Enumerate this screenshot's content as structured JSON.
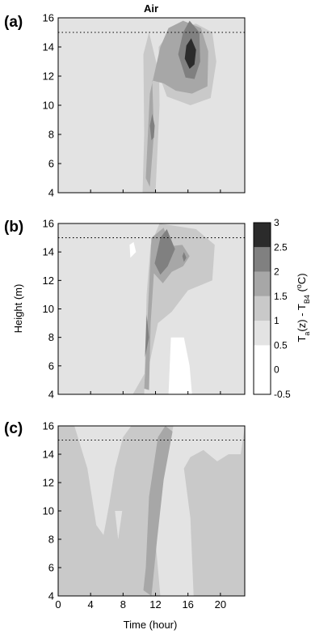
{
  "chart_data": [
    {
      "type": "heatmap",
      "panel_label": "(a)",
      "title": "Air",
      "xlabel": "",
      "ylabel": "",
      "xlim": [
        0,
        23
      ],
      "ylim": [
        4,
        16
      ],
      "xticks": [
        0,
        4,
        8,
        12,
        16,
        20
      ],
      "yticks": [
        4,
        6,
        8,
        10,
        12,
        14,
        16
      ],
      "show_xtick_labels": false,
      "reference_line_y": 15,
      "background_level": 0.75,
      "regions": [
        {
          "level": 0.25,
          "points": [
            [
              8,
              16
            ],
            [
              5,
              15.5
            ],
            [
              3,
              14
            ],
            [
              2.8,
              10
            ],
            [
              3,
              4
            ],
            [
              9,
              4
            ],
            [
              8.6,
              9
            ],
            [
              8.3,
              13
            ],
            [
              8.5,
              15
            ]
          ]
        },
        {
          "level": 0.75,
          "points": [
            [
              1.6,
              15.2
            ],
            [
              1.5,
              11
            ],
            [
              2.1,
              4
            ],
            [
              9.3,
              4
            ],
            [
              10,
              8
            ],
            [
              10.6,
              11
            ],
            [
              10.6,
              13
            ],
            [
              9.5,
              16
            ],
            [
              2,
              16
            ]
          ]
        },
        {
          "level": 1.25,
          "points": [
            [
              10.4,
              4
            ],
            [
              12,
              4
            ],
            [
              12.5,
              10
            ],
            [
              12.4,
              14
            ],
            [
              14,
              15.2
            ],
            [
              17,
              15.6
            ],
            [
              19,
              15
            ],
            [
              19.5,
              13
            ],
            [
              18.8,
              10.5
            ],
            [
              16.3,
              10
            ],
            [
              13.4,
              10.6
            ],
            [
              12.5,
              12
            ],
            [
              11.2,
              15
            ],
            [
              10.5,
              13.5
            ],
            [
              10.6,
              8
            ]
          ]
        },
        {
          "level": 1.75,
          "points": [
            [
              10.8,
              5
            ],
            [
              11.3,
              4.4
            ],
            [
              11.8,
              8
            ],
            [
              11.6,
              11.7
            ],
            [
              13,
              11.5
            ],
            [
              14.5,
              11
            ],
            [
              16.5,
              10.8
            ],
            [
              18.4,
              11.3
            ],
            [
              18.5,
              13.7
            ],
            [
              17.6,
              15.3
            ],
            [
              15.4,
              15.8
            ],
            [
              13.6,
              15.3
            ],
            [
              12.6,
              14
            ],
            [
              11.3,
              10.8
            ]
          ]
        },
        {
          "level": 2.25,
          "points": [
            [
              14.8,
              13.5
            ],
            [
              15.4,
              15
            ],
            [
              16.2,
              15.8
            ],
            [
              17.4,
              15
            ],
            [
              17.5,
              13
            ],
            [
              16.8,
              11.8
            ],
            [
              15.7,
              11.9
            ]
          ]
        },
        {
          "level": 2.25,
          "points": [
            [
              11.5,
              7.6
            ],
            [
              11.3,
              8.6
            ],
            [
              11.6,
              9.4
            ],
            [
              11.9,
              8.6
            ],
            [
              11.8,
              7.8
            ]
          ]
        },
        {
          "level": 2.75,
          "points": [
            [
              15.6,
              13.2
            ],
            [
              15.8,
              14.1
            ],
            [
              16.4,
              14.6
            ],
            [
              17,
              13.8
            ],
            [
              16.8,
              12.8
            ],
            [
              16.2,
              12.5
            ]
          ]
        }
      ]
    },
    {
      "type": "heatmap",
      "panel_label": "(b)",
      "title": "",
      "xlabel": "",
      "ylabel": "Height (m)",
      "xlim": [
        0,
        23
      ],
      "ylim": [
        4,
        16
      ],
      "xticks": [
        0,
        4,
        8,
        12,
        16,
        20
      ],
      "yticks": [
        4,
        6,
        8,
        10,
        12,
        14,
        16
      ],
      "show_xtick_labels": false,
      "reference_line_y": 15,
      "background_level": 0.75,
      "regions": [
        {
          "level": 0.25,
          "points": [
            [
              8.9,
              13.6
            ],
            [
              8.8,
              14.5
            ],
            [
              9.3,
              14.7
            ],
            [
              9.6,
              14
            ]
          ]
        },
        {
          "level": 0.25,
          "points": [
            [
              13.6,
              4
            ],
            [
              16.5,
              4
            ],
            [
              16.2,
              6
            ],
            [
              15.5,
              8
            ],
            [
              13.9,
              8
            ]
          ]
        },
        {
          "level": 1.25,
          "points": [
            [
              9.2,
              4
            ],
            [
              10.6,
              4
            ],
            [
              10.9,
              11
            ],
            [
              11.4,
              14.5
            ],
            [
              12.5,
              16
            ],
            [
              17,
              15.6
            ],
            [
              19.3,
              14.5
            ],
            [
              19,
              12
            ],
            [
              16,
              11.3
            ],
            [
              14,
              9.8
            ],
            [
              12.3,
              9
            ],
            [
              11.2,
              6
            ]
          ]
        },
        {
          "level": 1.75,
          "points": [
            [
              10.6,
              4.4
            ],
            [
              11.2,
              4.3
            ],
            [
              11.4,
              9
            ],
            [
              11.8,
              12.5
            ],
            [
              12.9,
              11.8
            ],
            [
              14,
              12.6
            ],
            [
              15.4,
              13
            ],
            [
              16.2,
              13.7
            ],
            [
              15.3,
              14.5
            ],
            [
              13.8,
              14.4
            ],
            [
              13,
              15.7
            ],
            [
              11.5,
              15
            ]
          ]
        },
        {
          "level": 2.25,
          "points": [
            [
              11.9,
              13.2
            ],
            [
              12.6,
              15
            ],
            [
              13.4,
              15.6
            ],
            [
              14.4,
              14.2
            ],
            [
              13.5,
              13
            ],
            [
              12.6,
              12.4
            ]
          ]
        },
        {
          "level": 2.25,
          "points": [
            [
              15.3,
              13.7
            ],
            [
              15.5,
              14
            ],
            [
              15.8,
              13.6
            ],
            [
              15.5,
              13.3
            ]
          ]
        },
        {
          "level": 2.25,
          "points": [
            [
              10.7,
              6.6
            ],
            [
              10.9,
              9.6
            ],
            [
              11.2,
              8
            ]
          ]
        }
      ],
      "colorbar": {
        "label": "T_a(z) - T_B4 (°C)",
        "ticks": [
          -0.5,
          0,
          0.5,
          1,
          1.5,
          2,
          2.5,
          3
        ],
        "tick_labels": [
          "-0.5",
          "0",
          "0.5",
          "1",
          "1.5",
          "2",
          "2.5",
          "3"
        ],
        "levels": [
          {
            "from": -0.5,
            "to": 0,
            "color": "#ffffff"
          },
          {
            "from": 0,
            "to": 0.5,
            "color": "#ffffff"
          },
          {
            "from": 0.5,
            "to": 1,
            "color": "#e3e3e3"
          },
          {
            "from": 1,
            "to": 1.5,
            "color": "#c9c9c9"
          },
          {
            "from": 1.5,
            "to": 2,
            "color": "#a7a7a7"
          },
          {
            "from": 2,
            "to": 2.5,
            "color": "#808080"
          },
          {
            "from": 2.5,
            "to": 3,
            "color": "#2b2b2b"
          }
        ]
      }
    },
    {
      "type": "heatmap",
      "panel_label": "(c)",
      "title": "",
      "xlabel": "Time (hour)",
      "ylabel": "",
      "xlim": [
        0,
        23
      ],
      "ylim": [
        4,
        16
      ],
      "xticks": [
        0,
        4,
        8,
        12,
        16,
        20
      ],
      "yticks": [
        4,
        6,
        8,
        10,
        12,
        14,
        16
      ],
      "show_xtick_labels": true,
      "reference_line_y": 15,
      "background_level": 1.25,
      "regions": [
        {
          "level": 0.75,
          "points": [
            [
              2,
              16
            ],
            [
              3.6,
              13
            ],
            [
              4.7,
              9
            ],
            [
              5.6,
              8.3
            ],
            [
              6.3,
              10.5
            ],
            [
              7,
              13
            ],
            [
              8,
              15.2
            ],
            [
              9,
              16
            ]
          ]
        },
        {
          "level": 0.75,
          "points": [
            [
              7,
              10
            ],
            [
              7.4,
              8
            ],
            [
              7.9,
              10
            ]
          ]
        },
        {
          "level": 0.75,
          "points": [
            [
              12.6,
              4
            ],
            [
              16.7,
              4
            ],
            [
              16.3,
              9.5
            ],
            [
              15.5,
              13
            ],
            [
              16.3,
              13.8
            ],
            [
              17.9,
              14.3
            ],
            [
              19.6,
              13.5
            ],
            [
              21,
              14
            ],
            [
              22.5,
              14
            ],
            [
              23,
              16
            ],
            [
              14.2,
              16
            ],
            [
              12.2,
              10
            ],
            [
              11.9,
              8.5
            ]
          ]
        },
        {
          "level": 1.75,
          "points": [
            [
              10.5,
              4.4
            ],
            [
              11.5,
              4
            ],
            [
              12.2,
              8
            ],
            [
              13,
              12.2
            ],
            [
              14.1,
              15.6
            ],
            [
              13.2,
              16
            ],
            [
              12.3,
              15.2
            ],
            [
              11.2,
              11
            ],
            [
              10.8,
              6
            ]
          ]
        }
      ]
    }
  ]
}
